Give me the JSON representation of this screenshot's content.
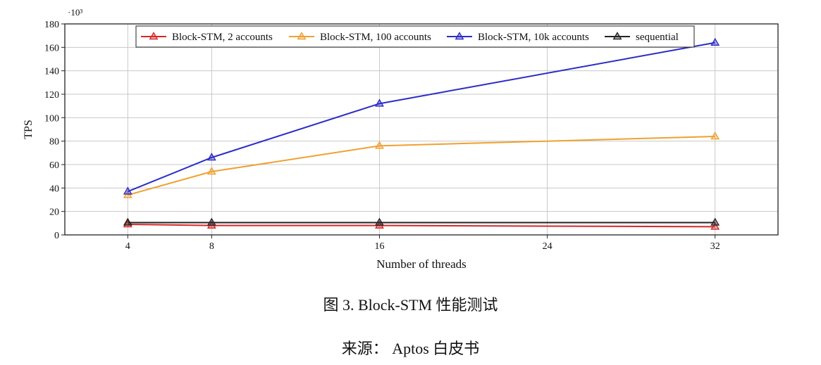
{
  "chart_data": {
    "type": "line",
    "xlabel": "Number of threads",
    "ylabel": "TPS",
    "y_multiplier": "·10³",
    "x_ticks": [
      4,
      8,
      16,
      24,
      32
    ],
    "y_ticks": [
      0,
      20,
      40,
      60,
      80,
      100,
      120,
      140,
      160,
      180
    ],
    "xlim": [
      1,
      35
    ],
    "ylim": [
      0,
      180
    ],
    "grid": true,
    "legend_position": "top",
    "series": [
      {
        "name": "Block-STM, 2 accounts",
        "color": "#d62728",
        "x": [
          4,
          8,
          16,
          32
        ],
        "y": [
          9,
          8,
          8,
          7
        ]
      },
      {
        "name": "Block-STM, 100 accounts",
        "color": "#f0a030",
        "x": [
          4,
          8,
          16,
          32
        ],
        "y": [
          34,
          54,
          76,
          84
        ]
      },
      {
        "name": "Block-STM, 10k accounts",
        "color": "#2c2cc8",
        "x": [
          4,
          8,
          16,
          32
        ],
        "y": [
          37,
          66,
          112,
          164
        ]
      },
      {
        "name": "sequential",
        "color": "#222222",
        "x": [
          4,
          8,
          16,
          32
        ],
        "y": [
          10.5,
          10.5,
          10.5,
          10.5
        ]
      }
    ]
  },
  "caption": {
    "figure": "图 3. Block-STM 性能测试",
    "source": "来源： Aptos 白皮书"
  }
}
